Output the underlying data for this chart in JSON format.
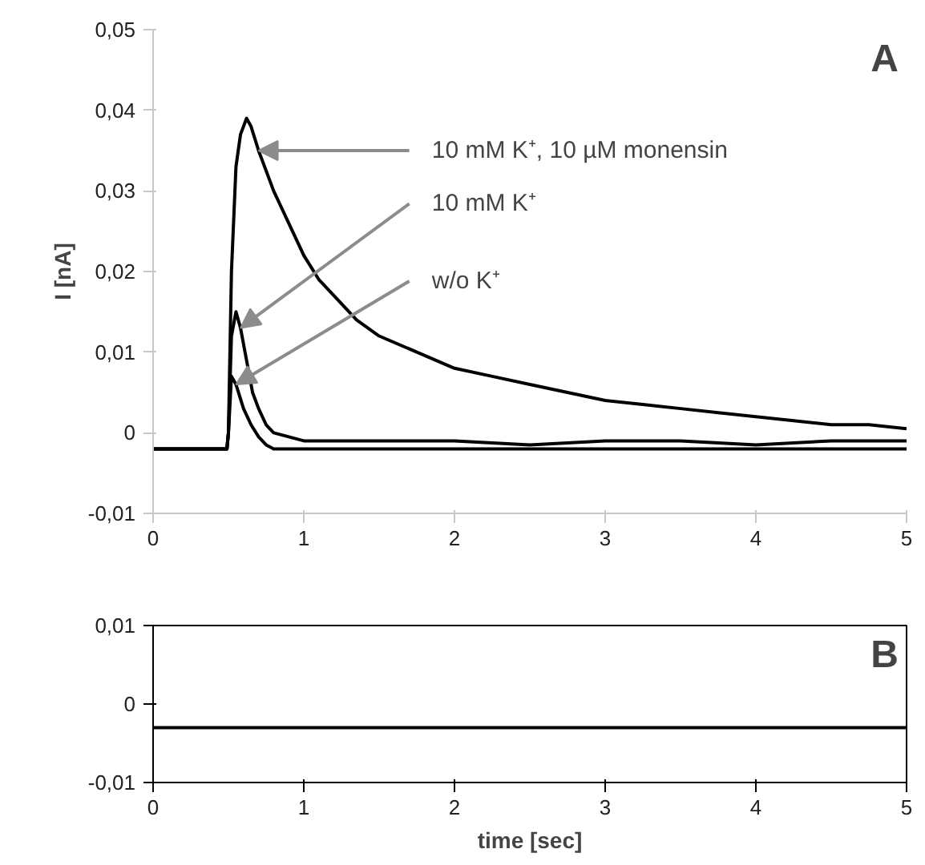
{
  "chart_data": [
    {
      "type": "line",
      "ylabel": "I [nA]",
      "xlim": [
        0,
        5
      ],
      "ylim": [
        -0.01,
        0.05
      ],
      "xticks": [
        0,
        1,
        2,
        3,
        4,
        5
      ],
      "yticks": [
        {
          "value": -0.01,
          "label": "-0,01"
        },
        0,
        {
          "value": 0.01,
          "label": "0,01"
        },
        {
          "value": 0.02,
          "label": "0,02"
        },
        {
          "value": 0.03,
          "label": "0,03"
        },
        {
          "value": 0.04,
          "label": "0,04"
        },
        {
          "value": 0.05,
          "label": "0,05"
        }
      ],
      "series": [
        {
          "color": "#000000",
          "x": [
            0,
            0.1,
            0.2,
            0.3,
            0.4,
            0.49,
            0.5,
            0.52,
            0.55,
            0.58,
            0.62,
            0.65,
            0.7,
            0.8,
            0.9,
            1.0,
            1.1,
            1.2,
            1.35,
            1.5,
            1.75,
            2.0,
            2.25,
            2.5,
            2.75,
            3.0,
            3.25,
            3.5,
            3.75,
            4.0,
            4.25,
            4.5,
            4.75,
            5.0
          ],
          "values": [
            -0.002,
            -0.002,
            -0.002,
            -0.002,
            -0.002,
            -0.002,
            0.0,
            0.02,
            0.033,
            0.037,
            0.039,
            0.038,
            0.035,
            0.03,
            0.026,
            0.022,
            0.019,
            0.017,
            0.014,
            0.012,
            0.01,
            0.008,
            0.007,
            0.006,
            0.005,
            0.004,
            0.0035,
            0.003,
            0.0025,
            0.002,
            0.0015,
            0.001,
            0.001,
            0.0005
          ]
        },
        {
          "color": "#000000",
          "x": [
            0,
            0.25,
            0.49,
            0.5,
            0.52,
            0.55,
            0.58,
            0.62,
            0.66,
            0.7,
            0.75,
            0.8,
            0.9,
            1.0,
            1.5,
            2.0,
            2.5,
            3.0,
            3.5,
            4.0,
            4.5,
            5.0
          ],
          "values": [
            -0.002,
            -0.002,
            -0.002,
            0.0,
            0.012,
            0.015,
            0.013,
            0.009,
            0.005,
            0.003,
            0.001,
            0.0,
            -0.0005,
            -0.001,
            -0.001,
            -0.001,
            -0.0015,
            -0.001,
            -0.001,
            -0.0015,
            -0.001,
            -0.001
          ]
        },
        {
          "color": "#000000",
          "x": [
            0,
            0.25,
            0.49,
            0.5,
            0.52,
            0.55,
            0.6,
            0.65,
            0.7,
            0.75,
            0.8,
            1.0,
            1.5,
            2.0,
            2.5,
            3.0,
            3.5,
            4.0,
            4.5,
            5.0
          ],
          "values": [
            -0.002,
            -0.002,
            -0.002,
            0.0,
            0.007,
            0.006,
            0.003,
            0.001,
            -0.0005,
            -0.0015,
            -0.002,
            -0.002,
            -0.002,
            -0.002,
            -0.002,
            -0.002,
            -0.002,
            -0.002,
            -0.002,
            -0.002
          ]
        }
      ],
      "annotations": [
        {
          "text": "10 mM K⁺, 10 µM monensin",
          "x": 0.7,
          "y": 0.035
        },
        {
          "text": "10 mM K⁺",
          "x": 0.58,
          "y": 0.013
        },
        {
          "text": "w/o K⁺",
          "x": 0.55,
          "y": 0.006
        },
        "A"
      ]
    },
    {
      "type": "line",
      "xlabel": "time [sec]",
      "xlim": [
        0,
        5
      ],
      "ylim": [
        -0.01,
        0.01
      ],
      "xticks": [
        0,
        1,
        2,
        3,
        4,
        5
      ],
      "yticks": [
        {
          "value": -0.01,
          "label": "-0,01"
        },
        0,
        {
          "value": 0.01,
          "label": "0,01"
        }
      ],
      "series": [
        {
          "color": "#000000",
          "x": [
            0,
            0.5,
            1.0,
            1.5,
            2.0,
            2.5,
            3.0,
            3.5,
            4.0,
            4.5,
            5.0
          ],
          "values": [
            -0.003,
            -0.003,
            -0.003,
            -0.003,
            -0.003,
            -0.003,
            -0.003,
            -0.003,
            -0.003,
            -0.003,
            -0.003
          ]
        }
      ],
      "annotations": [
        "B"
      ]
    }
  ]
}
